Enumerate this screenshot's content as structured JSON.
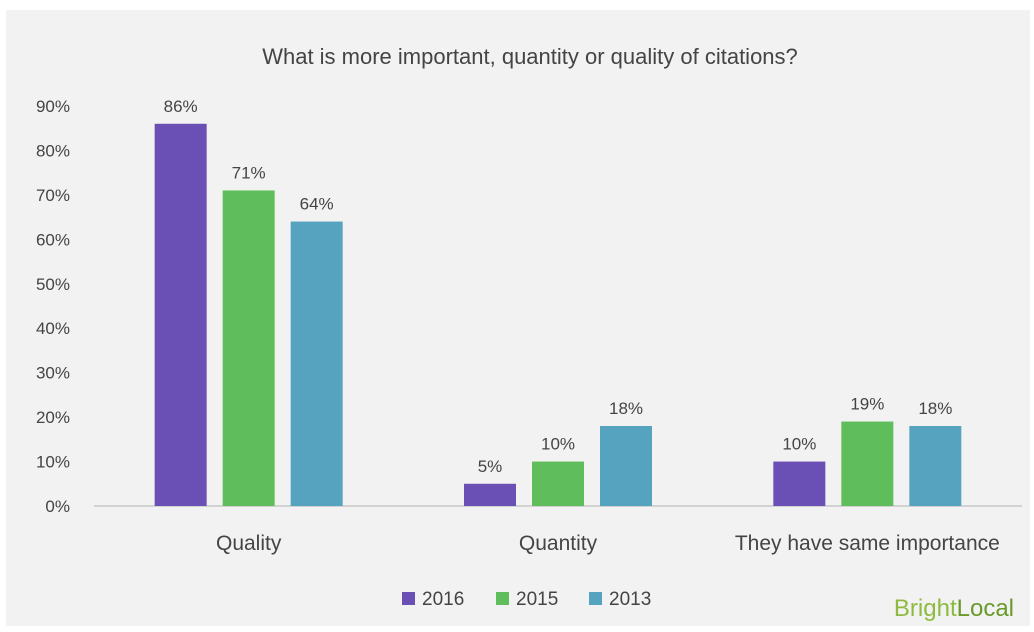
{
  "chart_data": {
    "type": "bar",
    "title": "What is more important, quantity or quality of citations?",
    "categories": [
      "Quality",
      "Quantity",
      "They have same importance"
    ],
    "series": [
      {
        "name": "2016",
        "color": "#6a4fb5",
        "values": [
          86,
          5,
          10
        ],
        "labels": [
          "86%",
          "5%",
          "10%"
        ]
      },
      {
        "name": "2015",
        "color": "#5fbe5b",
        "values": [
          71,
          10,
          19
        ],
        "labels": [
          "71%",
          "10%",
          "19%"
        ]
      },
      {
        "name": "2013",
        "color": "#56a3bf",
        "values": [
          64,
          18,
          18
        ],
        "labels": [
          "64%",
          "18%",
          "18%"
        ]
      }
    ],
    "ylim": [
      0,
      90
    ],
    "yticks": [
      0,
      10,
      20,
      30,
      40,
      50,
      60,
      70,
      80,
      90
    ],
    "ytick_labels": [
      "0%",
      "10%",
      "20%",
      "30%",
      "40%",
      "50%",
      "60%",
      "70%",
      "80%",
      "90%"
    ],
    "grid": false,
    "legend_position": "bottom"
  },
  "logo": {
    "text_part1": "Bright",
    "text_part2": "Local",
    "color1": "#8dbb3f",
    "color2": "#6a9a2c"
  }
}
